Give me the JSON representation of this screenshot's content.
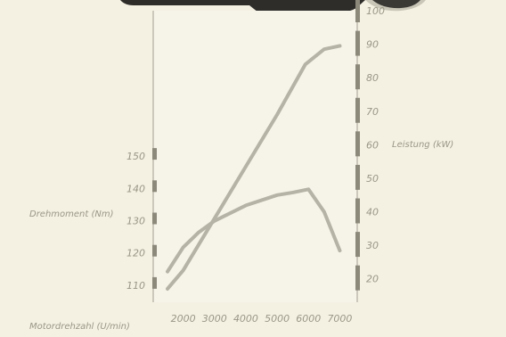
{
  "chart_data": {
    "type": "line",
    "x_axis": {
      "label": "Motordrehzahl (U/min)",
      "ticks": [
        2000,
        3000,
        4000,
        5000,
        6000,
        7000
      ],
      "range": [
        1300,
        7300
      ]
    },
    "y_left": {
      "label": "Drehmoment (Nm)",
      "ticks": [
        110,
        120,
        130,
        140,
        150
      ],
      "range": [
        105,
        155
      ]
    },
    "y_right": {
      "label": "Leistung (kW)",
      "ticks": [
        20,
        30,
        40,
        50,
        60,
        70,
        80,
        90,
        100
      ],
      "range": [
        13,
        100
      ]
    },
    "series": [
      {
        "axis": "right",
        "color": "#b5b3a5",
        "x": [
          1500,
          2000,
          3000,
          4000,
          5000,
          5900,
          6500,
          7000
        ],
        "y": [
          17,
          22.5,
          38,
          53.5,
          69,
          84,
          88.5,
          89.5
        ]
      },
      {
        "axis": "left",
        "color": "#b5b3a5",
        "x": [
          1500,
          2000,
          2500,
          3000,
          4000,
          5000,
          5500,
          6000,
          6500,
          7000
        ],
        "y": [
          114.5,
          122,
          126.7,
          130.2,
          135,
          138.2,
          139,
          140,
          133,
          121
        ]
      }
    ]
  },
  "colors": {
    "background": "#f4f0e2",
    "plot_area": "#f6f3e9",
    "frame": "#bdbaac",
    "axis_bar": "#8c897b",
    "car_shadow": "#2e2d2a"
  },
  "decorations": {
    "top_image": "car-silhouette"
  }
}
